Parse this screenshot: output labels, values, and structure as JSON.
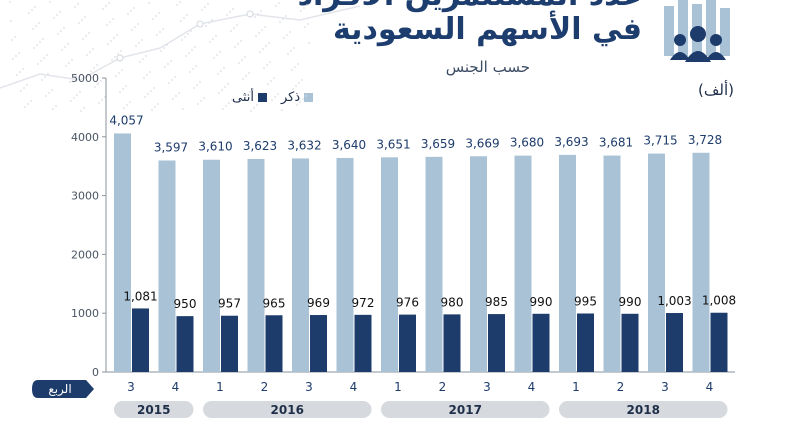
{
  "header": {
    "title_line1": "عدد المستثمرين الأفراد",
    "title_line2": "في الأسهم السعودية",
    "subtitle": "حسب الجنس",
    "unit": "(ألف)"
  },
  "legend": {
    "male_label": "ذكر",
    "female_label": "أنثى"
  },
  "colors": {
    "male": "#a9c2d6",
    "female": "#1d3c6c",
    "quarter_badge": "#1d3c6c",
    "year_pill": "#d6d9dd"
  },
  "icons": [
    "people-group-icon",
    "world-map-icon",
    "stock-line-icon"
  ],
  "chart_data": {
    "type": "bar",
    "categories": [
      "3",
      "4",
      "1",
      "2",
      "3",
      "4",
      "1",
      "2",
      "3",
      "4",
      "1",
      "2",
      "3",
      "4"
    ],
    "series": [
      {
        "name": "ذكر",
        "values": [
          4057,
          3597,
          3610,
          3623,
          3632,
          3640,
          3651,
          3659,
          3669,
          3680,
          3693,
          3681,
          3715,
          3728
        ]
      },
      {
        "name": "أنثى",
        "values": [
          1081,
          950,
          957,
          965,
          969,
          972,
          976,
          980,
          985,
          990,
          995,
          990,
          1003,
          1008
        ]
      }
    ],
    "ylim": [
      0,
      5000
    ],
    "yticks": [
      0,
      1000,
      2000,
      3000,
      4000,
      5000
    ],
    "xlabel": "الربع",
    "years": [
      {
        "label": "2015",
        "quarters": 2
      },
      {
        "label": "2016",
        "quarters": 4
      },
      {
        "label": "2017",
        "quarters": 4
      },
      {
        "label": "2018",
        "quarters": 4
      }
    ],
    "grid": false,
    "legend_position": "top-left"
  }
}
